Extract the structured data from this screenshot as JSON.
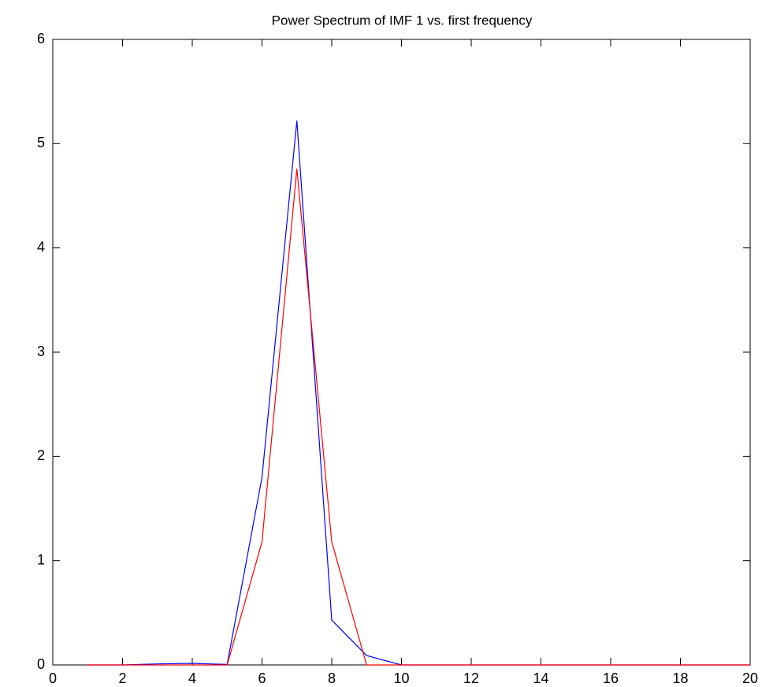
{
  "chart_data": {
    "type": "line",
    "title": "Power Spectrum of IMF 1 vs. first frequency",
    "x": [
      1,
      2,
      3,
      4,
      5,
      6,
      7,
      8,
      9,
      10,
      11,
      12,
      13,
      14,
      15,
      16,
      17,
      18,
      19,
      20
    ],
    "series": [
      {
        "color": "#0000ff",
        "values": [
          0,
          0,
          0.01,
          0.015,
          0.005,
          1.8,
          5.22,
          0.43,
          0.09,
          0,
          0,
          0,
          0,
          0,
          0,
          0,
          0,
          0,
          0,
          0
        ]
      },
      {
        "color": "#ff0000",
        "values": [
          0,
          0,
          0,
          0,
          0,
          1.18,
          4.76,
          1.18,
          0,
          0,
          0,
          0,
          0,
          0,
          0,
          0,
          0,
          0,
          0,
          0
        ]
      }
    ],
    "xlim": [
      0,
      20
    ],
    "xticks": [
      0,
      2,
      4,
      6,
      8,
      10,
      12,
      14,
      16,
      18,
      20
    ],
    "ylim": [
      0,
      6
    ],
    "yticks": [
      0,
      1,
      2,
      3,
      4,
      5,
      6
    ],
    "grid": false
  }
}
